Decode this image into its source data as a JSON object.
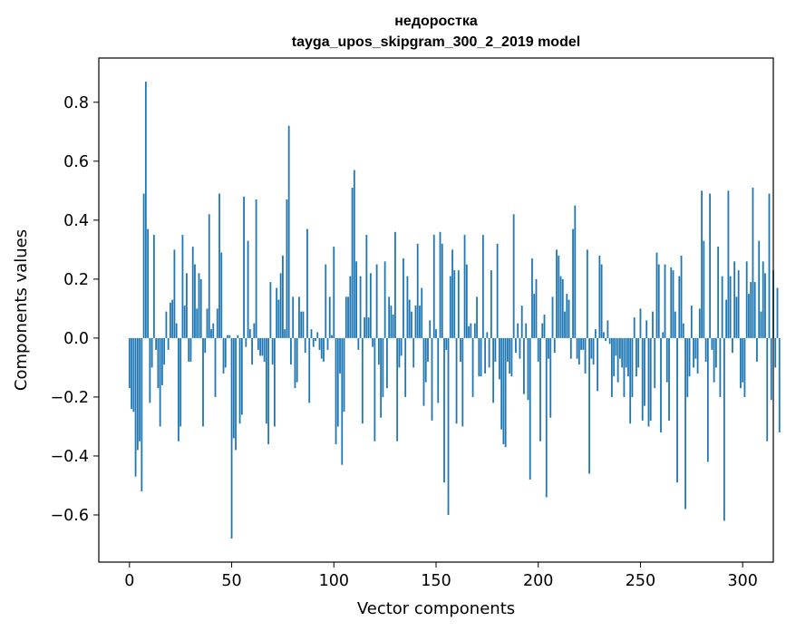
{
  "chart_data": {
    "type": "bar",
    "title": "недоростка",
    "subtitle": "tayga_upos_skipgram_300_2_2019 model",
    "xlabel": "Vector components",
    "ylabel": "Components values",
    "xlim": [
      -15,
      315
    ],
    "ylim": [
      -0.76,
      0.95
    ],
    "xticks": [
      0,
      50,
      100,
      150,
      200,
      250,
      300
    ],
    "xtick_labels": [
      "0",
      "50",
      "100",
      "150",
      "200",
      "250",
      "300"
    ],
    "yticks": [
      -0.6,
      -0.4,
      -0.2,
      0.0,
      0.2,
      0.4,
      0.6,
      0.8
    ],
    "ytick_labels": [
      "−0.6",
      "−0.4",
      "−0.2",
      "0.0",
      "0.2",
      "0.4",
      "0.6",
      "0.8"
    ],
    "bar_color": "#1f77b4",
    "grid": false,
    "values": [
      -0.17,
      -0.24,
      -0.25,
      -0.47,
      -0.38,
      -0.35,
      -0.52,
      0.49,
      0.87,
      0.37,
      -0.22,
      -0.1,
      0.35,
      -0.04,
      -0.17,
      -0.3,
      -0.16,
      -0.09,
      0.09,
      -0.04,
      0.12,
      0.13,
      0.3,
      0.05,
      -0.35,
      -0.3,
      0.35,
      0.11,
      0.22,
      -0.08,
      -0.08,
      0.31,
      0.25,
      0.1,
      0.22,
      0.2,
      -0.3,
      -0.05,
      0.1,
      0.42,
      0.03,
      0.05,
      -0.2,
      0.1,
      0.49,
      0.29,
      -0.12,
      -0.1,
      0.01,
      0.01,
      -0.68,
      -0.34,
      -0.38,
      0.01,
      -0.29,
      -0.26,
      0.48,
      -0.03,
      0.33,
      0.03,
      -0.09,
      0.05,
      0.47,
      -0.04,
      -0.06,
      -0.06,
      -0.08,
      -0.29,
      -0.36,
      0.19,
      -0.09,
      -0.3,
      0.17,
      0.13,
      0.22,
      0.28,
      0.03,
      0.47,
      0.72,
      -0.09,
      0.14,
      -0.17,
      -0.15,
      0.14,
      0.09,
      0.09,
      -0.05,
      0.37,
      -0.22,
      0.03,
      -0.03,
      -0.01,
      0.02,
      -0.04,
      -0.07,
      -0.08,
      0.25,
      -0.04,
      0.14,
      0.01,
      0.31,
      -0.36,
      -0.3,
      -0.12,
      -0.43,
      -0.25,
      0.14,
      0.14,
      0.21,
      0.51,
      0.57,
      0.26,
      -0.04,
      0.21,
      -0.29,
      0.07,
      0.35,
      0.07,
      0.22,
      -0.03,
      -0.35,
      0.25,
      -0.09,
      -0.27,
      -0.2,
      0.26,
      -0.17,
      0.14,
      0.11,
      0.08,
      0.36,
      -0.35,
      -0.1,
      -0.06,
      0.27,
      -0.2,
      0.21,
      0.13,
      0.09,
      -0.1,
      0.11,
      0.32,
      0.11,
      0.17,
      -0.23,
      -0.15,
      -0.08,
      0.06,
      -0.28,
      0.35,
      0.03,
      -0.22,
      0.36,
      0.32,
      -0.49,
      -0.04,
      -0.6,
      0.21,
      0.3,
      0.23,
      -0.29,
      0.23,
      -0.08,
      -0.3,
      0.35,
      0.25,
      0.04,
      0.05,
      -0.2,
      0.05,
      0.14,
      -0.13,
      -0.13,
      0.35,
      -0.12,
      0.02,
      -0.1,
      0.23,
      -0.22,
      -0.08,
      0.32,
      -0.14,
      -0.31,
      -0.36,
      -0.37,
      -0.08,
      -0.12,
      -0.13,
      0.42,
      -0.05,
      0.05,
      -0.07,
      0.11,
      -0.19,
      0.05,
      -0.21,
      -0.48,
      0.27,
      0.15,
      0.2,
      -0.08,
      -0.35,
      0.05,
      0.08,
      -0.54,
      -0.07,
      -0.27,
      0.14,
      -0.05,
      0.3,
      0.28,
      0.21,
      0.2,
      0.09,
      0.15,
      0.13,
      -0.07,
      0.37,
      0.45,
      -0.07,
      -0.09,
      -0.04,
      -0.04,
      -0.12,
      0.3,
      -0.46,
      -0.07,
      -0.09,
      0.03,
      -0.18,
      0.28,
      0.25,
      0.02,
      -0.01,
      0.06,
      -0.02,
      -0.2,
      -0.13,
      -0.06,
      -0.15,
      -0.07,
      -0.1,
      -0.2,
      -0.1,
      -0.13,
      -0.29,
      -0.2,
      0.07,
      -0.13,
      -0.1,
      0.1,
      -0.28,
      -0.23,
      0.06,
      -0.3,
      -0.28,
      0.09,
      -0.17,
      0.29,
      0.25,
      -0.32,
      0.02,
      0.25,
      -0.15,
      -0.28,
      0.24,
      0.23,
      0.09,
      -0.49,
      0.21,
      0.28,
      0.05,
      -0.58,
      -0.2,
      -0.13,
      0.11,
      -0.1,
      -0.07,
      -0.12,
      0.1,
      0.5,
      0.33,
      -0.08,
      -0.42,
      0.49,
      -0.04,
      -0.15,
      -0.1,
      0.31,
      -0.2,
      0.21,
      -0.62,
      0.13,
      0.5,
      0.21,
      -0.05,
      0.26,
      0.14,
      0.23,
      -0.17,
      -0.15,
      -0.2,
      0.26,
      0.15,
      0.19,
      0.51,
      0.19,
      -0.08,
      0.33,
      0.09,
      0.26,
      0.22,
      -0.35,
      0.49,
      -0.21,
      0.23,
      -0.1,
      0.17,
      -0.32
    ]
  }
}
